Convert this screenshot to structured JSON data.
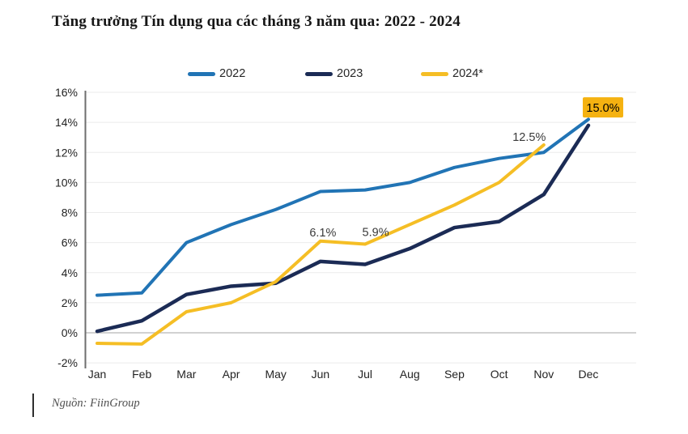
{
  "header": {
    "title": "Tăng trưởng Tín dụng qua các tháng 3 năm qua: 2022 - 2024"
  },
  "footer": {
    "source": "Nguồn: FiinGroup"
  },
  "legend": {
    "items": [
      {
        "label": "2022"
      },
      {
        "label": "2023"
      },
      {
        "label": "2024*"
      }
    ]
  },
  "colors": {
    "series_2022": "#2174B5",
    "series_2023": "#1B2B55",
    "series_2024": "#F5BE25",
    "annotation_box_bg": "#F5B211",
    "annotation_text": "#3a3a3a",
    "axis_text": "#232323",
    "grid": "#EBEBEB",
    "zero_line": "#C4C4C4",
    "axis_line": "#6E6E6E"
  },
  "chart_data": {
    "type": "line",
    "title": "Tăng trưởng Tín dụng qua các tháng 3 năm qua: 2022 - 2024",
    "categories": [
      "Jan",
      "Feb",
      "Mar",
      "Apr",
      "May",
      "Jun",
      "Jul",
      "Aug",
      "Sep",
      "Oct",
      "Nov",
      "Dec"
    ],
    "series": [
      {
        "name": "2022",
        "color_key": "series_2022",
        "values": [
          2.5,
          2.65,
          6.0,
          7.2,
          8.2,
          9.4,
          9.5,
          10.0,
          11.0,
          11.6,
          12.0,
          14.2
        ]
      },
      {
        "name": "2023",
        "color_key": "series_2023",
        "values": [
          0.1,
          0.8,
          2.55,
          3.1,
          3.3,
          4.75,
          4.55,
          5.6,
          7.0,
          7.4,
          9.2,
          13.8
        ]
      },
      {
        "name": "2024*",
        "color_key": "series_2024",
        "values": [
          -0.7,
          -0.75,
          1.4,
          2.0,
          3.4,
          6.1,
          5.9,
          7.2,
          8.5,
          10.0,
          12.5,
          null
        ]
      }
    ],
    "annotations": [
      {
        "text": "6.1%",
        "series": "2024*",
        "month": "Jun",
        "month_index": 5,
        "value": 6.1,
        "style": "plain"
      },
      {
        "text": "5.9%",
        "series": "2024*",
        "month": "Jul",
        "month_index": 6,
        "value": 5.9,
        "style": "plain"
      },
      {
        "text": "12.5%",
        "series": "2024*",
        "month": "Nov",
        "month_index": 10,
        "value": 12.5,
        "style": "plain"
      },
      {
        "text": "15.0%",
        "series": "2024*",
        "month": "Dec",
        "month_index": 11,
        "value": 15.0,
        "style": "highlight-box"
      }
    ],
    "y_axis": {
      "min": -2,
      "max": 16,
      "step": 2,
      "suffix": "%"
    },
    "grid": true,
    "legend_position": "top-center"
  }
}
